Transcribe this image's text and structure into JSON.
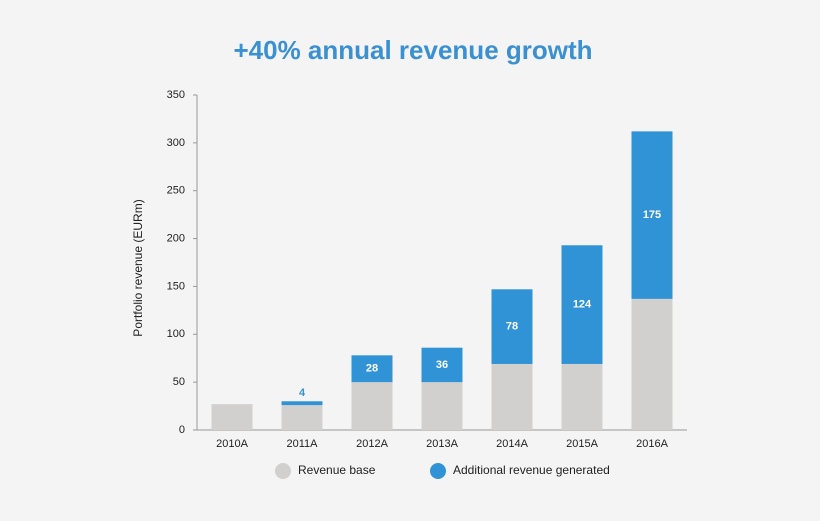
{
  "chart_data": {
    "type": "stacked_bar",
    "title": "+40% annual revenue growth",
    "y_label": "Portfolio revenue (EURm)",
    "categories": [
      "2010A",
      "2011A",
      "2012A",
      "2013A",
      "2014A",
      "2015A",
      "2016A"
    ],
    "series": [
      {
        "name": "Revenue base",
        "color": "#d1d0ce",
        "values": [
          27,
          26,
          50,
          50,
          69,
          69,
          137
        ]
      },
      {
        "name": "Additional revenue generated",
        "color": "#2f93d5",
        "values": [
          null,
          4,
          28,
          36,
          78,
          124,
          175
        ]
      }
    ],
    "ylim": [
      0,
      350
    ],
    "yticks": [
      0,
      50,
      100,
      150,
      200,
      250,
      300,
      350
    ],
    "grid": false
  }
}
